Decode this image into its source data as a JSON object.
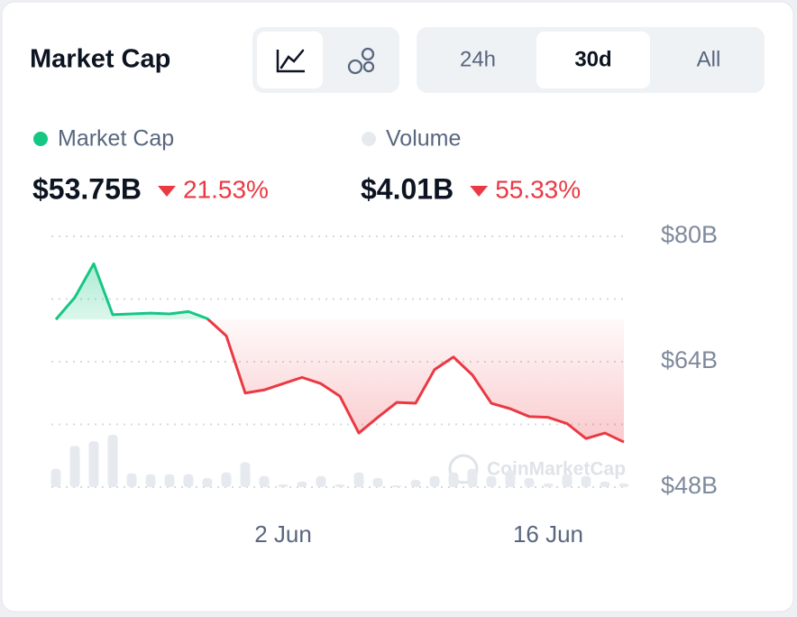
{
  "header": {
    "title": "Market Cap",
    "ranges": [
      "24h",
      "30d",
      "All"
    ],
    "selected_range": 1
  },
  "chart_data": {
    "type": "line",
    "series": [
      {
        "name": "Market Cap",
        "color": "#16c784",
        "down_color": "#ea3943",
        "current": "$53.75B",
        "change": "21.53%",
        "values": [
          69.4,
          72.2,
          76.5,
          70.0,
          70.1,
          70.2,
          70.1,
          70.4,
          69.5,
          67.3,
          60.0,
          60.4,
          61.2,
          62.0,
          61.2,
          59.6,
          54.9,
          56.9,
          58.8,
          58.7,
          63.0,
          64.6,
          62.3,
          58.7,
          58.0,
          57.0,
          56.9,
          56.1,
          54.2,
          54.9,
          53.75
        ]
      },
      {
        "name": "Volume",
        "color": "#e6eaef",
        "current": "$4.01B",
        "change": "55.33%",
        "values": [
          20,
          45,
          50,
          57,
          15,
          14,
          14,
          14,
          10,
          16,
          27,
          12,
          3,
          6,
          12,
          3,
          16,
          10,
          2,
          8,
          12,
          16,
          20,
          12,
          18,
          10,
          4,
          14,
          12,
          6,
          4
        ]
      }
    ],
    "categories": [
      null,
      null,
      null,
      null,
      null,
      null,
      null,
      null,
      null,
      null,
      null,
      null,
      "2 Jun",
      null,
      null,
      null,
      null,
      null,
      null,
      null,
      null,
      null,
      null,
      null,
      null,
      null,
      "16 Jun",
      null,
      null,
      null,
      null
    ],
    "ylim": [
      48,
      80
    ],
    "yticks": [
      {
        "value": 48,
        "label": "$48B"
      },
      {
        "value": 64,
        "label": "$64B"
      },
      {
        "value": 80,
        "label": "$80B"
      }
    ],
    "grid_lines": [
      48,
      56,
      64,
      72,
      80
    ],
    "watermark": "CoinMarketCap"
  }
}
